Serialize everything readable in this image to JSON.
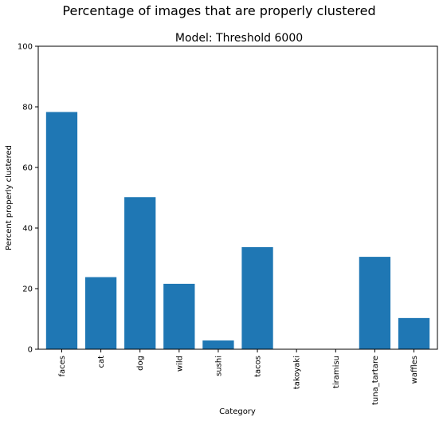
{
  "chart_data": {
    "type": "bar",
    "suptitle": "Percentage of images that are properly clustered",
    "title": "Model: Threshold 6000",
    "xlabel": "Category",
    "ylabel": "Percent properly clustered",
    "ylim": [
      0,
      100
    ],
    "yticks": [
      0,
      20,
      40,
      60,
      80,
      100
    ],
    "categories": [
      "faces",
      "cat",
      "dog",
      "wild",
      "sushi",
      "tacos",
      "takoyaki",
      "tiramisu",
      "tuna_tartare",
      "waffles"
    ],
    "values": [
      78.3,
      23.8,
      50.2,
      21.6,
      2.9,
      33.7,
      0,
      0,
      30.5,
      10.3
    ],
    "bar_color": "#1f77b4",
    "grid": false,
    "legend": "none"
  }
}
